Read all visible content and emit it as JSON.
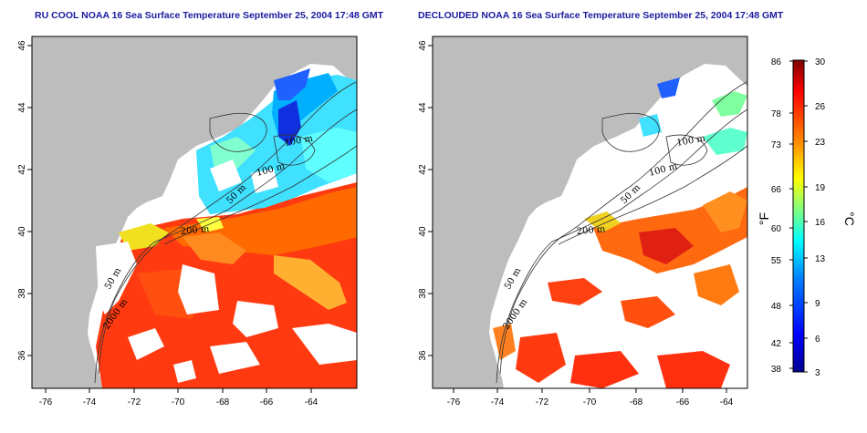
{
  "maps": [
    {
      "title": "RU COOL NOAA 16 Sea Surface Temperature September 25, 2004 17:48 GMT",
      "contour_labels": [
        "100 m",
        "100 m",
        "50 m",
        "200 m",
        "50 m",
        "2000 m"
      ]
    },
    {
      "title": "DECLOUDED NOAA 16 Sea Surface Temperature September 25, 2004 17:48 GMT",
      "contour_labels": [
        "100 m",
        "100 m",
        "50 m",
        "200 m",
        "50 m",
        "2000 m"
      ]
    }
  ],
  "axes": {
    "x_ticks": [
      "-76",
      "-74",
      "-72",
      "-70",
      "-68",
      "-66",
      "-64"
    ],
    "y_ticks": [
      "36",
      "38",
      "40",
      "42",
      "44",
      "46"
    ]
  },
  "colorbar": {
    "fahrenheit_ticks": [
      "86",
      "78",
      "73",
      "66",
      "60",
      "55",
      "48",
      "42",
      "38"
    ],
    "celsius_ticks": [
      "30",
      "26",
      "23",
      "19",
      "16",
      "13",
      "9",
      "6",
      "3"
    ],
    "fahrenheit_unit": "°F",
    "celsius_unit": "°C",
    "colors": [
      "#00008f",
      "#0000ff",
      "#0080ff",
      "#00ffff",
      "#80ff80",
      "#ffff00",
      "#ff8000",
      "#ff0000",
      "#800000"
    ]
  },
  "colors": {
    "land": "#bdbdbd",
    "cloud": "#ffffff",
    "title": "#1a1aa0"
  }
}
